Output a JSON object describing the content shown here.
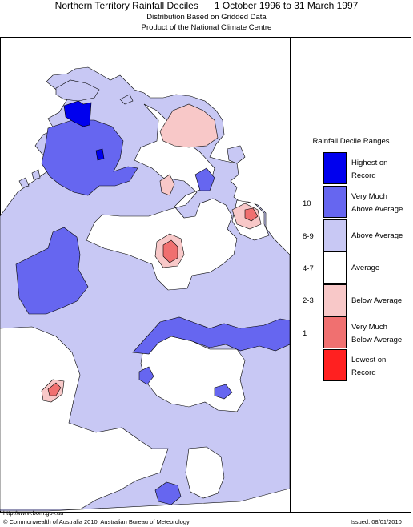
{
  "header": {
    "title": "Northern Territory Rainfall Deciles      1 October 1996 to 31 March 1997",
    "subtitle1": "Distribution Based on Gridded Data",
    "subtitle2": "Product of the National Climate Centre"
  },
  "legend": {
    "title": "Rainfall Decile Ranges",
    "items": [
      {
        "label_1": "Highest on",
        "label_2": "Record",
        "color": "#0000ee",
        "decile": ""
      },
      {
        "label_1": "Very Much",
        "label_2": "Above Average",
        "color": "#6666f0",
        "decile": "10"
      },
      {
        "label_1": "Above Average",
        "label_2": "",
        "color": "#c8c8f4",
        "decile": "8-9"
      },
      {
        "label_1": "Average",
        "label_2": "",
        "color": "#ffffff",
        "decile": "4-7"
      },
      {
        "label_1": "Below Average",
        "label_2": "",
        "color": "#f8c8c8",
        "decile": "2-3"
      },
      {
        "label_1": "Very Much",
        "label_2": "Below Average",
        "color": "#f07070",
        "decile": "1"
      },
      {
        "label_1": "Lowest on",
        "label_2": "Record",
        "color": "#ff2020",
        "decile": ""
      }
    ]
  },
  "footer": {
    "url": "http://www.bom.gov.au",
    "copyright": "© Commonwealth of Australia 2010, Australian Bureau of Meteorology",
    "issued": "Issued: 08/01/2010"
  }
}
